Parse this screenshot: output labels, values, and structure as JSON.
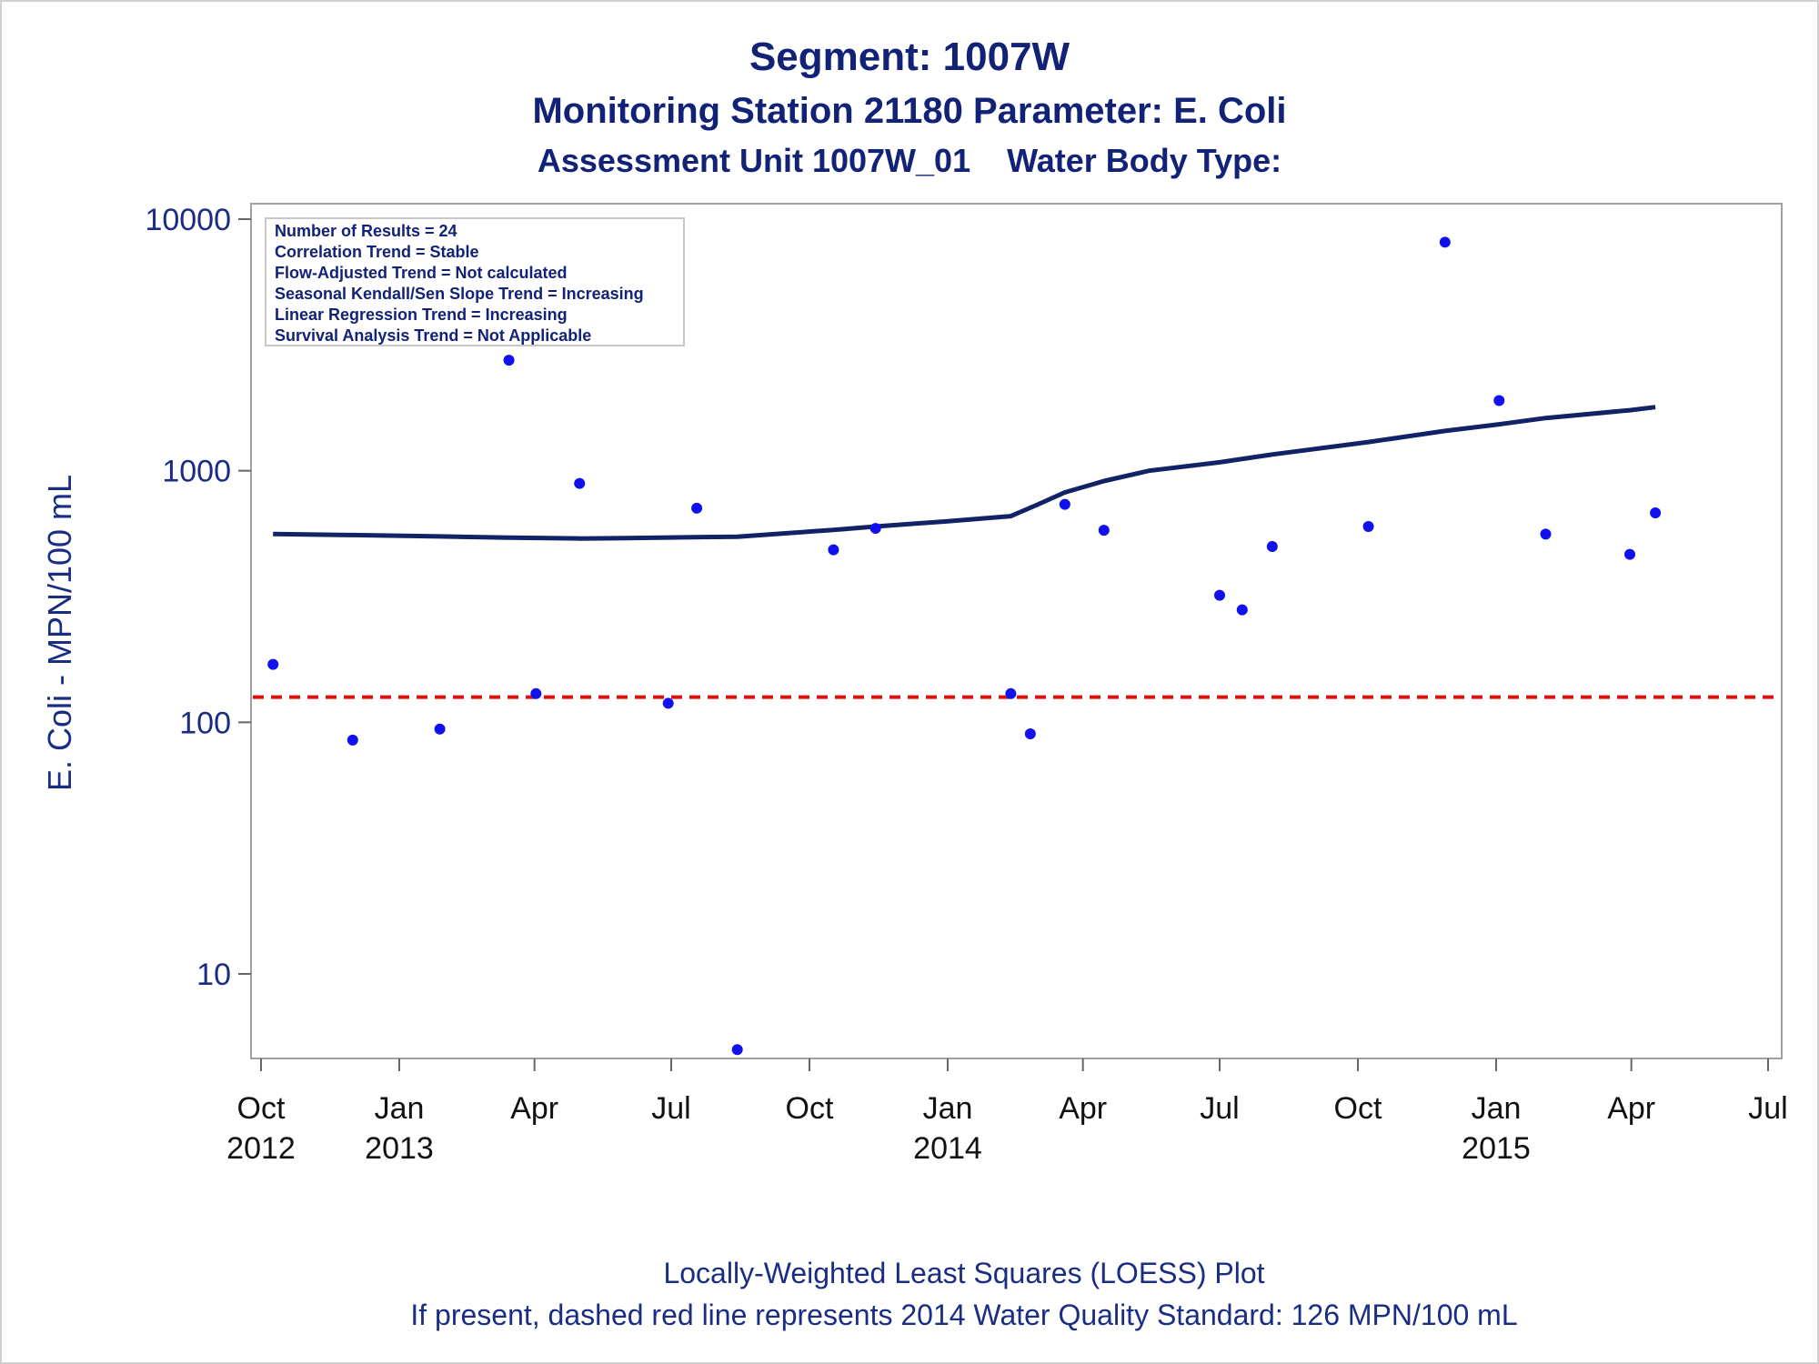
{
  "chart_data": {
    "type": "scatter",
    "title": "Segment: 1007W",
    "subtitle": "Monitoring Station 21180 Parameter: E. Coli",
    "subtitle2": "Assessment Unit 1007W_01    Water Body Type:",
    "ylabel": "E. Coli - MPN/100 mL",
    "footnote1": "Locally-Weighted Least Squares (LOESS) Plot",
    "footnote2": "If present, dashed red line represents 2014 Water Quality Standard: 126 MPN/100 mL",
    "yscale": "log",
    "ylim": [
      5,
      10000
    ],
    "xlim": [
      "2012-10-01",
      "2015-07-01"
    ],
    "yticks": [
      {
        "value": 10,
        "label": "10"
      },
      {
        "value": 100,
        "label": "100"
      },
      {
        "value": 1000,
        "label": "1000"
      },
      {
        "value": 10000,
        "label": "10000"
      }
    ],
    "xticks": [
      {
        "date": "2012-10-01",
        "month": "Oct",
        "year": "2012"
      },
      {
        "date": "2013-01-01",
        "month": "Jan",
        "year": "2013"
      },
      {
        "date": "2013-04-01",
        "month": "Apr",
        "year": ""
      },
      {
        "date": "2013-07-01",
        "month": "Jul",
        "year": ""
      },
      {
        "date": "2013-10-01",
        "month": "Oct",
        "year": ""
      },
      {
        "date": "2014-01-01",
        "month": "Jan",
        "year": "2014"
      },
      {
        "date": "2014-04-01",
        "month": "Apr",
        "year": ""
      },
      {
        "date": "2014-07-01",
        "month": "Jul",
        "year": ""
      },
      {
        "date": "2014-10-01",
        "month": "Oct",
        "year": ""
      },
      {
        "date": "2015-01-01",
        "month": "Jan",
        "year": "2015"
      },
      {
        "date": "2015-04-01",
        "month": "Apr",
        "year": ""
      },
      {
        "date": "2015-07-01",
        "month": "Jul",
        "year": ""
      }
    ],
    "stats": [
      "Number of Results = 24",
      "Correlation Trend = Stable",
      "Flow-Adjusted Trend = Not calculated",
      "Seasonal Kendall/Sen Slope Trend = Increasing",
      "Linear Regression Trend = Increasing",
      "Survival Analysis Trend = Not Applicable"
    ],
    "standard": {
      "value": 126,
      "color": "#dd1111"
    },
    "point_color": "#1111ee",
    "line_color": "#112266",
    "series": [
      {
        "type": "scatter",
        "points": [
          {
            "date": "2012-10-09",
            "value": 170
          },
          {
            "date": "2012-12-01",
            "value": 85
          },
          {
            "date": "2013-01-28",
            "value": 94
          },
          {
            "date": "2013-03-15",
            "value": 2750
          },
          {
            "date": "2013-04-02",
            "value": 130
          },
          {
            "date": "2013-05-01",
            "value": 890
          },
          {
            "date": "2013-06-29",
            "value": 119
          },
          {
            "date": "2013-07-18",
            "value": 710
          },
          {
            "date": "2013-08-14",
            "value": 5
          },
          {
            "date": "2013-10-17",
            "value": 485
          },
          {
            "date": "2013-11-14",
            "value": 590
          },
          {
            "date": "2014-02-12",
            "value": 130
          },
          {
            "date": "2014-02-25",
            "value": 90
          },
          {
            "date": "2014-03-20",
            "value": 735
          },
          {
            "date": "2014-04-15",
            "value": 580
          },
          {
            "date": "2014-07-01",
            "value": 320
          },
          {
            "date": "2014-07-16",
            "value": 280
          },
          {
            "date": "2014-08-05",
            "value": 500
          },
          {
            "date": "2014-10-08",
            "value": 600
          },
          {
            "date": "2014-11-28",
            "value": 8100
          },
          {
            "date": "2015-01-03",
            "value": 1900
          },
          {
            "date": "2015-02-03",
            "value": 560
          },
          {
            "date": "2015-03-31",
            "value": 465
          },
          {
            "date": "2015-04-17",
            "value": 680
          }
        ]
      },
      {
        "type": "line",
        "points": [
          {
            "date": "2012-10-09",
            "value": 560
          },
          {
            "date": "2012-12-01",
            "value": 555
          },
          {
            "date": "2013-01-28",
            "value": 548
          },
          {
            "date": "2013-03-15",
            "value": 542
          },
          {
            "date": "2013-05-01",
            "value": 538
          },
          {
            "date": "2013-06-01",
            "value": 540
          },
          {
            "date": "2013-08-14",
            "value": 547
          },
          {
            "date": "2013-10-17",
            "value": 582
          },
          {
            "date": "2013-11-14",
            "value": 600
          },
          {
            "date": "2014-01-01",
            "value": 630
          },
          {
            "date": "2014-02-12",
            "value": 660
          },
          {
            "date": "2014-03-01",
            "value": 730
          },
          {
            "date": "2014-03-20",
            "value": 820
          },
          {
            "date": "2014-04-15",
            "value": 910
          },
          {
            "date": "2014-05-15",
            "value": 1000
          },
          {
            "date": "2014-07-01",
            "value": 1080
          },
          {
            "date": "2014-08-05",
            "value": 1160
          },
          {
            "date": "2014-10-08",
            "value": 1300
          },
          {
            "date": "2014-11-28",
            "value": 1440
          },
          {
            "date": "2015-01-03",
            "value": 1530
          },
          {
            "date": "2015-02-03",
            "value": 1620
          },
          {
            "date": "2015-03-31",
            "value": 1740
          },
          {
            "date": "2015-04-17",
            "value": 1790
          }
        ]
      }
    ]
  }
}
